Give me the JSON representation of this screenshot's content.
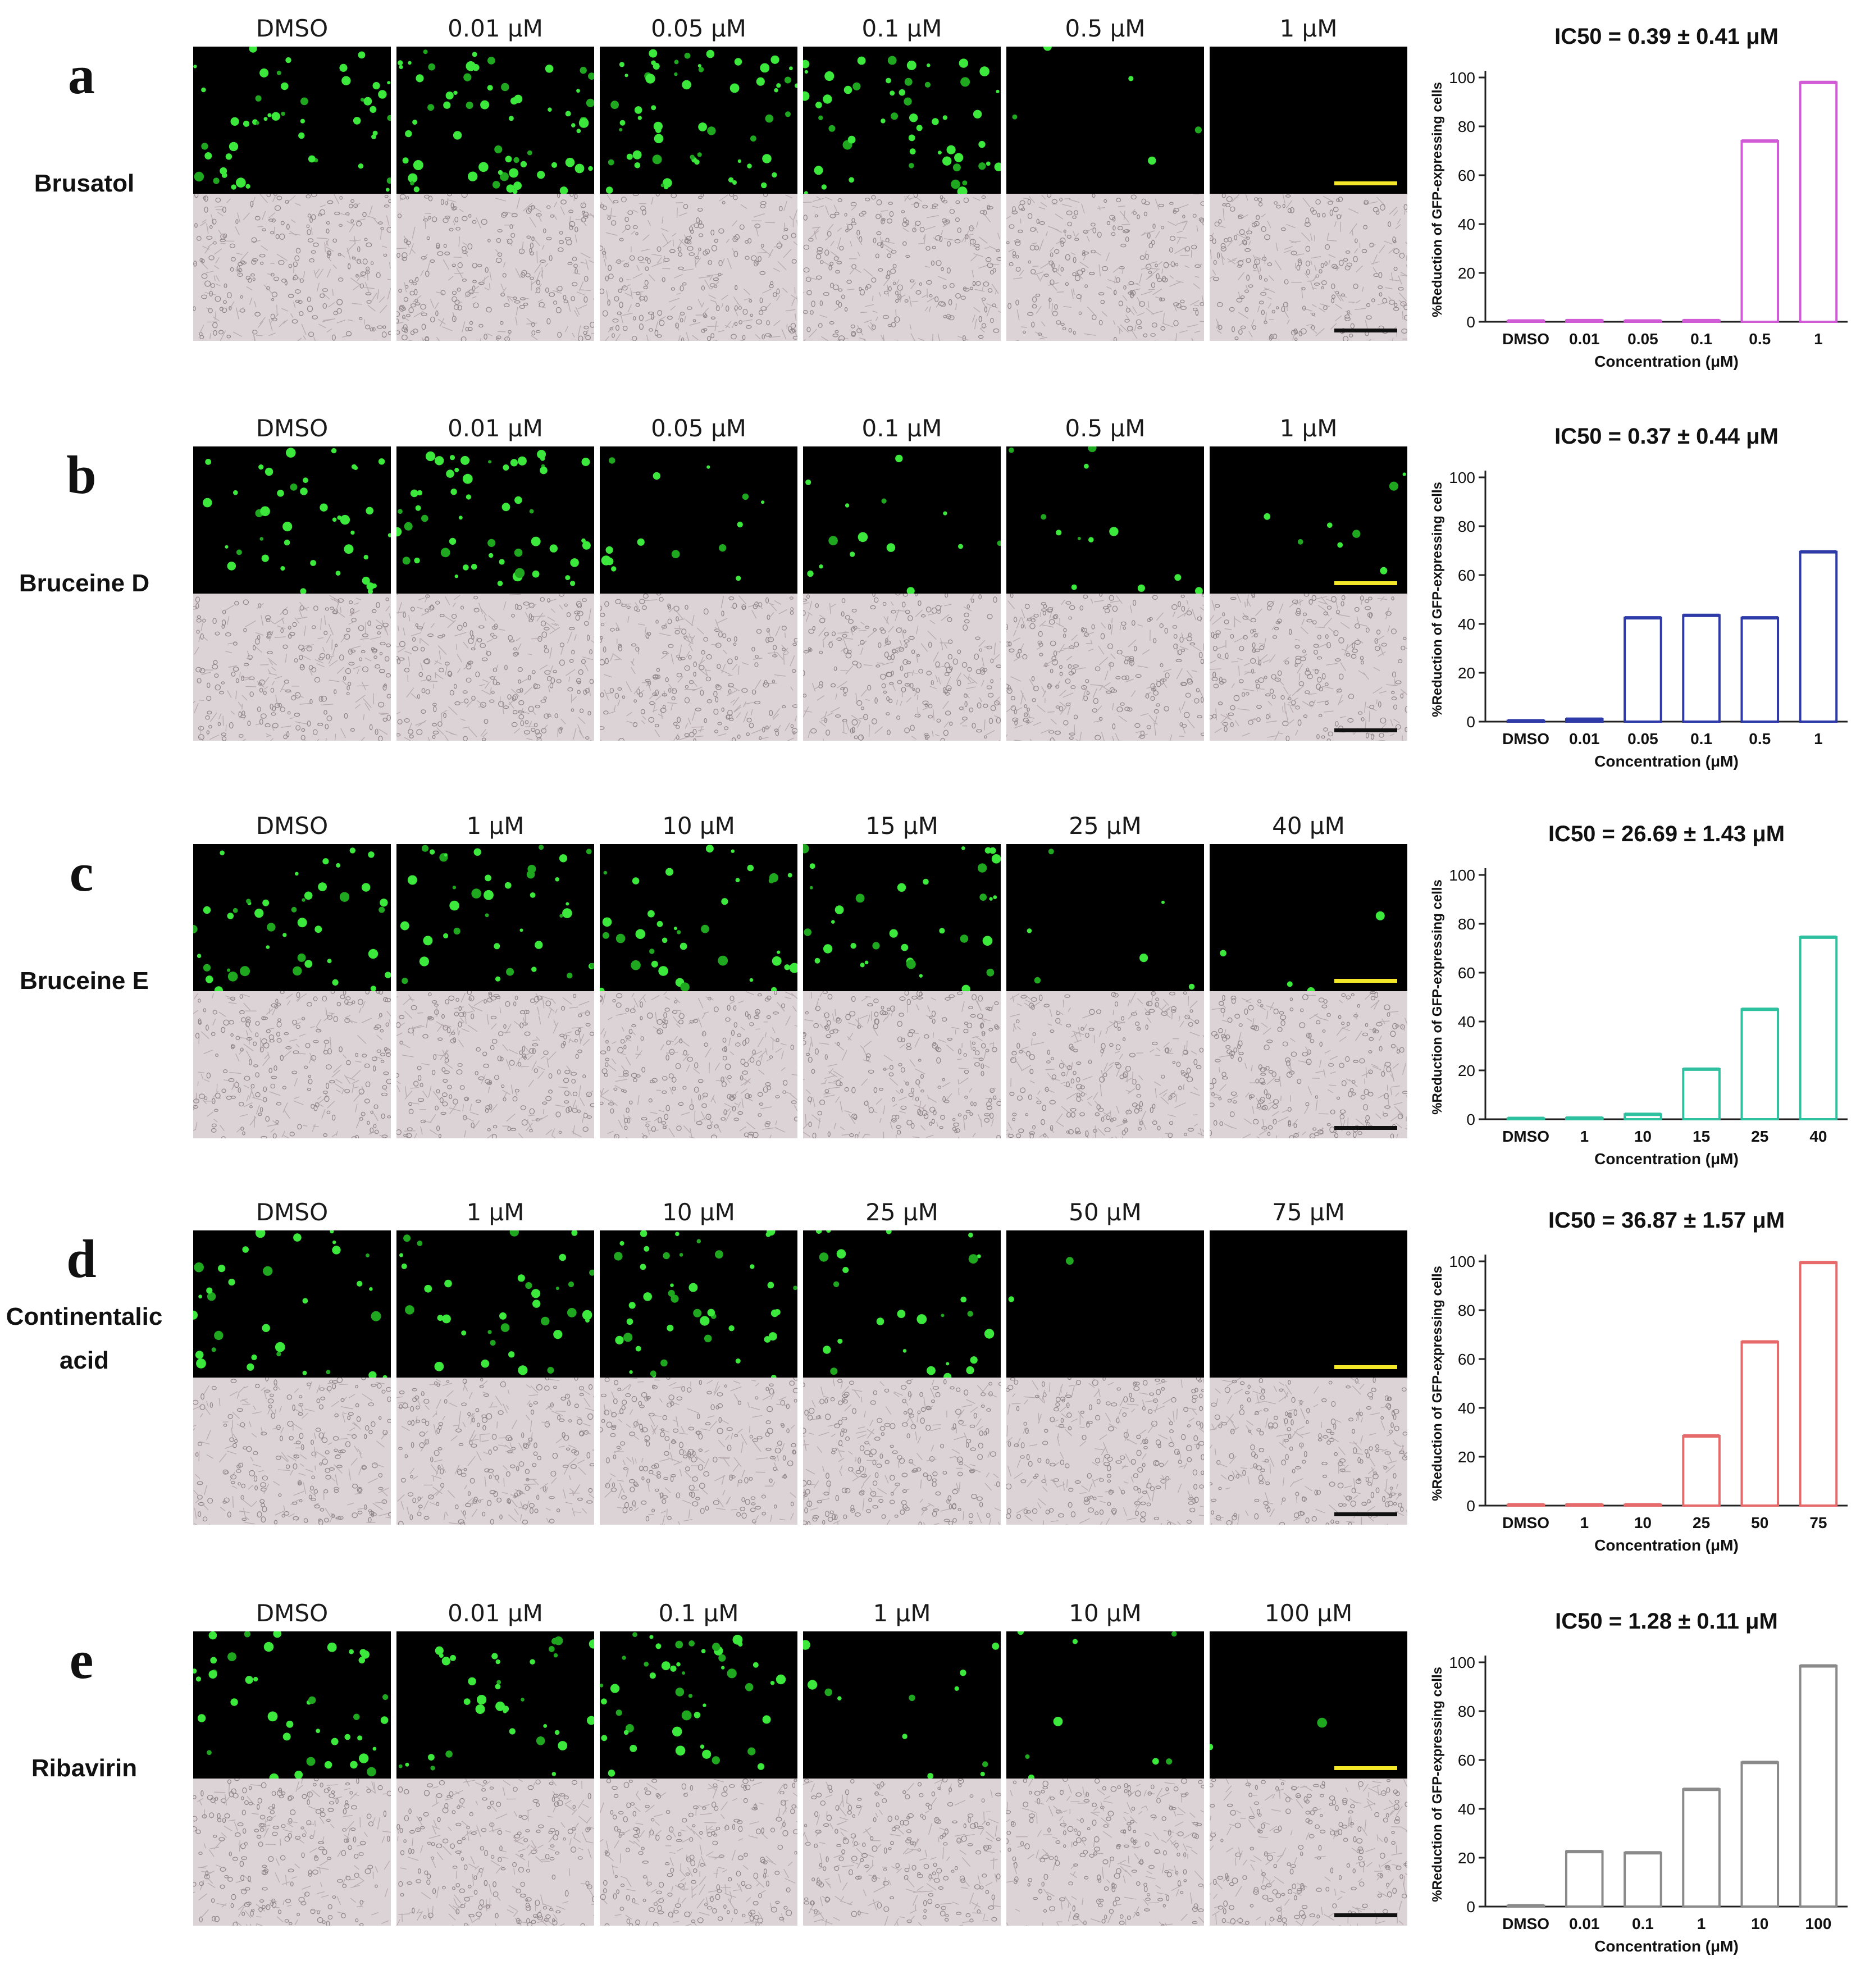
{
  "panels": [
    {
      "letter": "a",
      "compound": "Brusatol",
      "concentrations": [
        "DMSO",
        "0.01 μM",
        "0.05 μM",
        "0.1 μM",
        "0.5 μM",
        "1 μM"
      ],
      "fluorescence_density": [
        48,
        62,
        58,
        52,
        5,
        0
      ],
      "chart_title": "IC50 = 0.39 ± 0.41 μM",
      "color": "#d15ad6"
    },
    {
      "letter": "b",
      "compound": "Bruceine D",
      "concentrations": [
        "DMSO",
        "0.01 μM",
        "0.05 μM",
        "0.1 μM",
        "0.5 μM",
        "1 μM"
      ],
      "fluorescence_density": [
        40,
        52,
        14,
        14,
        12,
        8
      ],
      "chart_title": "IC50 = 0.37 ± 0.44 μM",
      "color": "#2e3aa7"
    },
    {
      "letter": "c",
      "compound": "Bruceine E",
      "concentrations": [
        "DMSO",
        "1 μM",
        "10 μM",
        "15 μM",
        "25 μM",
        "40 μM"
      ],
      "fluorescence_density": [
        42,
        38,
        36,
        34,
        6,
        4
      ],
      "chart_title": "IC50 = 26.69 ± 1.43 μM",
      "color": "#2fc0a0"
    },
    {
      "letter": "d",
      "compound": "Continentalic\nacid",
      "concentrations": [
        "DMSO",
        "1 μM",
        "10 μM",
        "25 μM",
        "50 μM",
        "75 μM"
      ],
      "fluorescence_density": [
        32,
        36,
        42,
        26,
        2,
        0
      ],
      "chart_title": "IC50 = 36.87 ± 1.57 μM",
      "color": "#e66a6a"
    },
    {
      "letter": "e",
      "compound": "Ribavirin",
      "concentrations": [
        "DMSO",
        "0.01 μM",
        "0.1 μM",
        "1 μM",
        "10 μM",
        "100 μM"
      ],
      "fluorescence_density": [
        40,
        34,
        46,
        12,
        8,
        2
      ],
      "chart_title": "IC50 = 1.28 ± 0.11 μM",
      "color": "#8a8a8a"
    }
  ],
  "scale_bar_colors": {
    "fluorescence": "#f4e72a",
    "brightfield": "#111111"
  },
  "chart_data": [
    {
      "type": "bar",
      "title": "IC50 = 0.39 ± 0.41 μM",
      "categories": [
        "DMSO",
        "0.01",
        "0.05",
        "0.1",
        "0.5",
        "1"
      ],
      "values": [
        0,
        0.5,
        0.3,
        0.5,
        74,
        98
      ],
      "xlabel": "Concentration (μM)",
      "ylabel": "%Reduction of GFP-expressing cells",
      "ylim": [
        0,
        100
      ],
      "yticks": [
        0,
        20,
        40,
        60,
        80,
        100
      ],
      "color": "#d15ad6"
    },
    {
      "type": "bar",
      "title": "IC50 = 0.37 ± 0.44 μM",
      "categories": [
        "DMSO",
        "0.01",
        "0.05",
        "0.1",
        "0.5",
        "1"
      ],
      "values": [
        0,
        1,
        42.5,
        43.5,
        42.5,
        69.5
      ],
      "xlabel": "Concentration (μM)",
      "ylabel": "%Reduction of GFP-expressing cells",
      "ylim": [
        0,
        100
      ],
      "yticks": [
        0,
        20,
        40,
        60,
        80,
        100
      ],
      "color": "#2e3aa7"
    },
    {
      "type": "bar",
      "title": "IC50 = 26.69 ± 1.43 μM",
      "categories": [
        "DMSO",
        "1",
        "10",
        "15",
        "25",
        "40"
      ],
      "values": [
        0,
        0.5,
        2,
        20.5,
        45,
        74.5
      ],
      "xlabel": "Concentration (μM)",
      "ylabel": "%Reduction of GFP-expressing cells",
      "ylim": [
        0,
        100
      ],
      "yticks": [
        0,
        20,
        40,
        60,
        80,
        100
      ],
      "color": "#2fc0a0"
    },
    {
      "type": "bar",
      "title": "IC50 = 36.87 ± 1.57 μM",
      "categories": [
        "DMSO",
        "1",
        "10",
        "25",
        "50",
        "75"
      ],
      "values": [
        0,
        0,
        0,
        28.5,
        67,
        99.5
      ],
      "xlabel": "Concentration (μM)",
      "ylabel": "%Reduction of GFP-expressing cells",
      "ylim": [
        0,
        100
      ],
      "yticks": [
        0,
        20,
        40,
        60,
        80,
        100
      ],
      "color": "#e66a6a"
    },
    {
      "type": "bar",
      "title": "IC50 = 1.28 ± 0.11 μM",
      "categories": [
        "DMSO",
        "0.01",
        "0.1",
        "1",
        "10",
        "100"
      ],
      "values": [
        0,
        22.5,
        22,
        48,
        59,
        98.5
      ],
      "xlabel": "Concentration (μM)",
      "ylabel": "%Reduction of GFP-expressing cells",
      "ylim": [
        0,
        100
      ],
      "yticks": [
        0,
        20,
        40,
        60,
        80,
        100
      ],
      "color": "#8a8a8a"
    }
  ]
}
